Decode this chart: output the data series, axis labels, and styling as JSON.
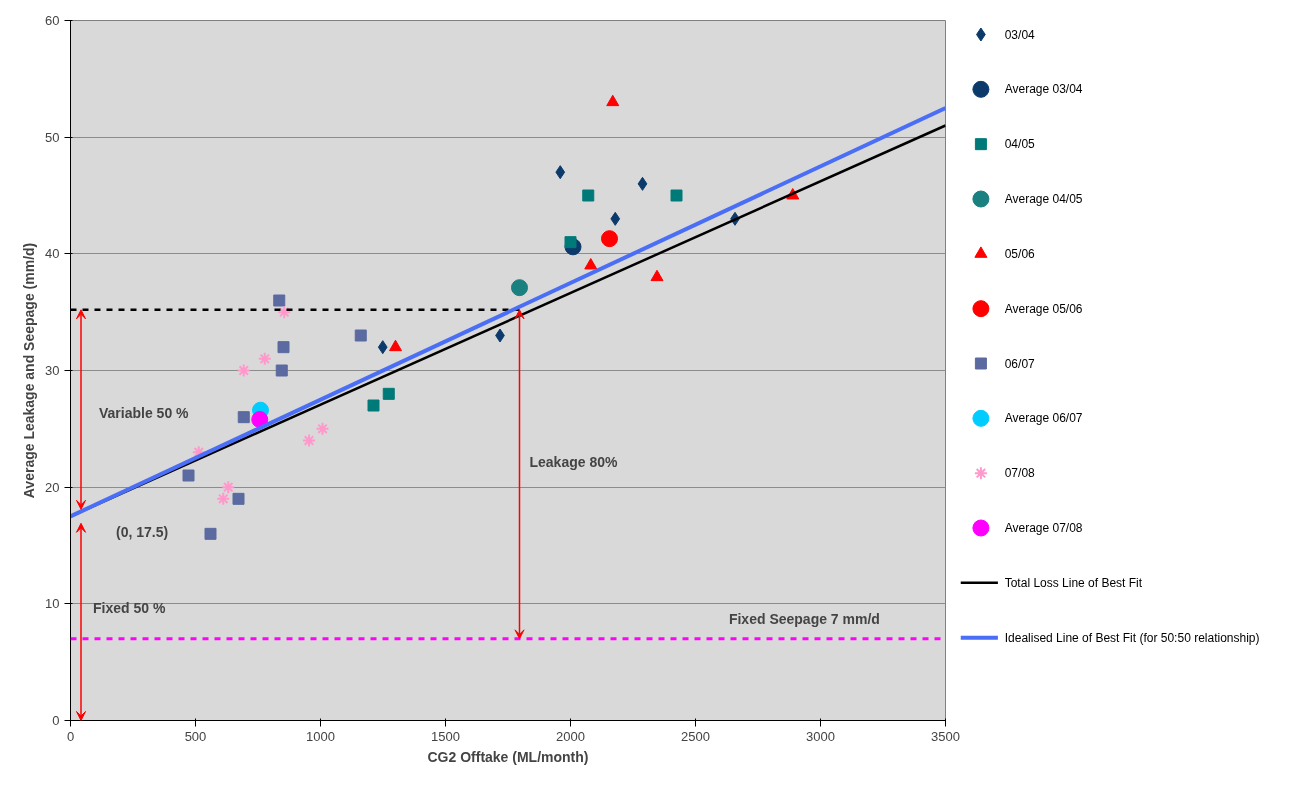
{
  "chart_data": {
    "type": "scatter",
    "xlabel": "CG2 Offtake (ML/month)",
    "ylabel": "Average Leakage and Seepage (mm/d)",
    "xlim": [
      0,
      3500
    ],
    "ylim": [
      0,
      60
    ],
    "xticks": [
      0,
      500,
      1000,
      1500,
      2000,
      2500,
      3000,
      3500
    ],
    "yticks": [
      0,
      10,
      20,
      30,
      40,
      50,
      60
    ],
    "grid": "y",
    "legend": "right",
    "series": [
      {
        "name": "03/04",
        "marker": "diamond",
        "color": "#0b3a6b",
        "x": [
          1249,
          1959,
          2179,
          2288,
          1718,
          2658
        ],
        "values": [
          32,
          47,
          43,
          46,
          33,
          43
        ]
      },
      {
        "name": "Average 03/04",
        "marker": "circle",
        "color": "#0b3a6b",
        "x": [
          2010
        ],
        "values": [
          40.6
        ]
      },
      {
        "name": "04/05",
        "marker": "square",
        "color": "#007a78",
        "x": [
          2071,
          2424,
          2000,
          1212,
          1273
        ],
        "values": [
          45,
          45,
          41,
          27,
          28
        ]
      },
      {
        "name": "Average 04/05",
        "marker": "circle",
        "color": "#1a8080",
        "x": [
          1796
        ],
        "values": [
          37.1
        ]
      },
      {
        "name": "05/06",
        "marker": "triangle",
        "color": "#ff0000",
        "x": [
          2169,
          2081,
          2346,
          1300,
          2889
        ],
        "values": [
          53,
          39,
          38,
          32,
          45
        ]
      },
      {
        "name": "Average 05/06",
        "marker": "circle",
        "color": "#ff0000",
        "x": [
          2156
        ],
        "values": [
          41.3
        ]
      },
      {
        "name": "06/07",
        "marker": "square",
        "color": "#5b6aa0",
        "x": [
          835,
          852,
          845,
          1161,
          693,
          472,
          672,
          560
        ],
        "values": [
          36,
          32,
          30,
          33,
          26,
          21,
          19,
          16
        ]
      },
      {
        "name": "Average 06/07",
        "marker": "circle",
        "color": "#00ccff",
        "x": [
          760
        ],
        "values": [
          26.6
        ]
      },
      {
        "name": "07/08",
        "marker": "cross",
        "color": "#ff99cc",
        "x": [
          855,
          777,
          693,
          513,
          631,
          611,
          954,
          1008
        ],
        "values": [
          35,
          31,
          30,
          23,
          20,
          19,
          24,
          25
        ]
      },
      {
        "name": "Average 07/08",
        "marker": "circle",
        "color": "#ff00ff",
        "x": [
          757
        ],
        "values": [
          25.8
        ]
      },
      {
        "color": "#000000",
        "type": "line",
        "line_style": "dashed",
        "x": [
          0,
          1796
        ],
        "values": [
          35.2,
          35.2
        ]
      },
      {
        "name": "Total Loss Line of Best Fit",
        "type": "line",
        "line_style": "solid",
        "color": "#000000",
        "x": [
          0,
          3500
        ],
        "values": [
          17.5,
          51.0
        ]
      },
      {
        "name": "Idealised Line of Best Fit (for 50:50 relationship)",
        "type": "line",
        "line_style": "solid",
        "color": "#4a6ef5",
        "x": [
          0,
          3500
        ],
        "values": [
          17.5,
          52.5
        ]
      }
    ],
    "ref_lines": [
      {
        "axis": "y",
        "value": 7,
        "label": "Fixed Seepage 7 mm/d",
        "color": "#ff00ff",
        "line_style": "dashed"
      }
    ],
    "annotations": [
      "Variable 50 %",
      "(0, 17.5)",
      "Fixed 50 %",
      "Leakage 80%"
    ]
  }
}
